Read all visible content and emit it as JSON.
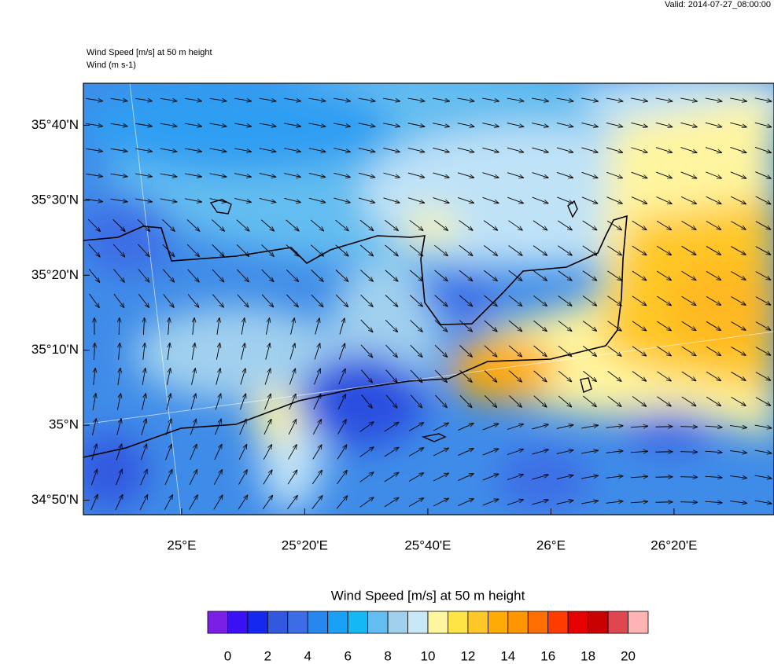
{
  "valid": "Valid: 2014-07-27_08:00:00",
  "titles": [
    "Wind Speed [m/s] at 50 m height",
    "Wind   (m s-1)"
  ],
  "map": {
    "xlim": [
      24.734,
      26.604
    ],
    "ylim": [
      34.801,
      35.76
    ],
    "xticks": [
      {
        "value": 25,
        "label": "25°E"
      },
      {
        "value": 25.3333,
        "label": "25°20'E"
      },
      {
        "value": 25.6667,
        "label": "25°40'E"
      },
      {
        "value": 26,
        "label": "26°E"
      },
      {
        "value": 26.3333,
        "label": "26°20'E"
      }
    ],
    "yticks": [
      {
        "value": 34.8333,
        "label": "34°50'N"
      },
      {
        "value": 35,
        "label": "35°N"
      },
      {
        "value": 35.1667,
        "label": "35°10'N"
      },
      {
        "value": 35.3333,
        "label": "35°20'N"
      },
      {
        "value": 35.5,
        "label": "35°30'N"
      },
      {
        "value": 35.6667,
        "label": "35°40'N"
      }
    ]
  },
  "colorbar": {
    "title": "Wind Speed [m/s] at 50 m height",
    "range": [
      -1,
      21
    ],
    "colors": [
      "#7b1ee6",
      "#3a10f5",
      "#1428f0",
      "#3258e0",
      "#3c6de6",
      "#2887ef",
      "#1aa0f5",
      "#14b8f5",
      "#64bdf0",
      "#a0d0ee",
      "#c8e8f8",
      "#fff5a0",
      "#ffe445",
      "#ffc828",
      "#ffaa05",
      "#ff9600",
      "#ff6e00",
      "#ff3c00",
      "#e60000",
      "#c80000",
      "#e04650",
      "#ffb4b4"
    ],
    "ticks": [
      0,
      2,
      4,
      6,
      8,
      10,
      12,
      14,
      16,
      18,
      20
    ]
  }
}
